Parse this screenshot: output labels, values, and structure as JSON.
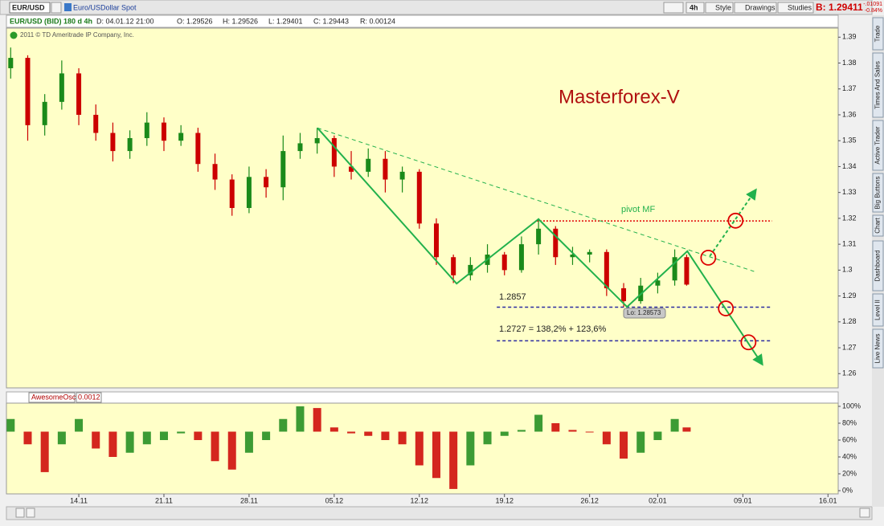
{
  "toolbar": {
    "symbol": "EUR/USD",
    "description": "Euro/USDollar Spot",
    "buttons": [
      "4h",
      "Style",
      "Drawings",
      "Studies"
    ],
    "bid": "B: 1.29411",
    "change": "-.01091",
    "change_pct": "-0.84%"
  },
  "info_bar": {
    "instrument": "EUR/USD (BID) 180 d 4h",
    "date": "D: 04.01.12 21:00",
    "open": "O: 1.29526",
    "high": "H: 1.29526",
    "low": "L: 1.29401",
    "close": "C: 1.29443",
    "range": "R: 0.00124"
  },
  "copyright": "2011 © TD Ameritrade IP Company, Inc.",
  "side_tabs": [
    "Trade",
    "Times And Sales",
    "Active Trader",
    "Big Buttons",
    "Chart",
    "Dashboard",
    "Level II",
    "Live News"
  ],
  "price_chart": {
    "type": "candlestick",
    "xlim": [
      0.75,
      49.6
    ],
    "xticks": [
      {
        "value": 5,
        "label": "14.11"
      },
      {
        "value": 10,
        "label": "21.11"
      },
      {
        "value": 15,
        "label": "28.11"
      },
      {
        "value": 20,
        "label": "05.12"
      },
      {
        "value": 25,
        "label": "12.12"
      },
      {
        "value": 30,
        "label": "19.12"
      },
      {
        "value": 35,
        "label": "26.12"
      },
      {
        "value": 39,
        "label": "02.01"
      },
      {
        "value": 44,
        "label": "09.01"
      },
      {
        "value": 49,
        "label": "16.01"
      }
    ],
    "ylim": [
      1.2545,
      1.3935
    ],
    "yticks": [
      1.39,
      1.38,
      1.37,
      1.36,
      1.35,
      1.34,
      1.33,
      1.32,
      1.31,
      1.3,
      1.29,
      1.28,
      1.27,
      1.26
    ],
    "up_color": "#1a8a1a",
    "down_color": "#cc0000",
    "candles": [
      [
        1,
        1.378,
        1.386,
        1.374,
        1.382
      ],
      [
        2,
        1.382,
        1.383,
        1.35,
        1.356
      ],
      [
        3,
        1.356,
        1.368,
        1.352,
        1.365
      ],
      [
        4,
        1.365,
        1.381,
        1.362,
        1.376
      ],
      [
        5,
        1.376,
        1.378,
        1.356,
        1.36
      ],
      [
        6,
        1.36,
        1.364,
        1.35,
        1.353
      ],
      [
        7,
        1.353,
        1.357,
        1.342,
        1.346
      ],
      [
        8,
        1.346,
        1.354,
        1.343,
        1.351
      ],
      [
        9,
        1.351,
        1.361,
        1.348,
        1.357
      ],
      [
        10,
        1.357,
        1.359,
        1.346,
        1.35
      ],
      [
        11,
        1.35,
        1.356,
        1.348,
        1.353
      ],
      [
        12,
        1.353,
        1.355,
        1.338,
        1.341
      ],
      [
        13,
        1.341,
        1.345,
        1.331,
        1.335
      ],
      [
        14,
        1.335,
        1.337,
        1.321,
        1.324
      ],
      [
        15,
        1.324,
        1.34,
        1.322,
        1.336
      ],
      [
        16,
        1.336,
        1.339,
        1.328,
        1.332
      ],
      [
        17,
        1.332,
        1.352,
        1.327,
        1.346
      ],
      [
        18,
        1.346,
        1.353,
        1.343,
        1.349
      ],
      [
        19,
        1.349,
        1.355,
        1.345,
        1.351
      ],
      [
        20,
        1.351,
        1.352,
        1.336,
        1.34
      ],
      [
        21,
        1.34,
        1.346,
        1.335,
        1.338
      ],
      [
        22,
        1.338,
        1.347,
        1.336,
        1.343
      ],
      [
        23,
        1.343,
        1.346,
        1.33,
        1.335
      ],
      [
        24,
        1.335,
        1.34,
        1.33,
        1.338
      ],
      [
        25,
        1.338,
        1.339,
        1.316,
        1.318
      ],
      [
        26,
        1.318,
        1.32,
        1.302,
        1.305
      ],
      [
        27,
        1.305,
        1.306,
        1.295,
        1.298
      ],
      [
        28,
        1.298,
        1.305,
        1.296,
        1.302
      ],
      [
        29,
        1.302,
        1.31,
        1.299,
        1.306
      ],
      [
        30,
        1.306,
        1.307,
        1.298,
        1.3
      ],
      [
        31,
        1.3,
        1.313,
        1.299,
        1.31
      ],
      [
        32,
        1.31,
        1.32,
        1.306,
        1.316
      ],
      [
        33,
        1.316,
        1.317,
        1.302,
        1.305
      ],
      [
        34,
        1.305,
        1.309,
        1.302,
        1.306
      ],
      [
        35,
        1.306,
        1.308,
        1.303,
        1.307
      ],
      [
        36,
        1.307,
        1.308,
        1.29,
        1.293
      ],
      [
        37,
        1.293,
        1.295,
        1.2857,
        1.288
      ],
      [
        38,
        1.288,
        1.297,
        1.287,
        1.294
      ],
      [
        39,
        1.294,
        1.299,
        1.291,
        1.296
      ],
      [
        40,
        1.296,
        1.308,
        1.294,
        1.305
      ],
      [
        40.7,
        1.305,
        1.306,
        1.294,
        1.2944
      ]
    ],
    "annotations": {
      "title": "Masterforex-V",
      "title_color": "#b01010",
      "pivot_label": "pivot MF",
      "level1_label": "1.2857",
      "level2_label": "1.2727 = 138,2% + 123,6%",
      "lo_label": "Lo: 1.28573",
      "levels": [
        {
          "price": 1.319,
          "from": 31.9,
          "to": 45.7,
          "color": "#e00000",
          "dash": "2,2"
        },
        {
          "price": 1.2857,
          "from": 29.55,
          "to": 45.7,
          "color": "#2a2aa0",
          "dash": "4,3"
        },
        {
          "price": 1.2727,
          "from": 29.55,
          "to": 45.7,
          "color": "#2a2aa0",
          "dash": "4,3"
        }
      ],
      "line_color": "#22b14c",
      "zigzag": [
        [
          19.02,
          1.3549
        ],
        [
          27.19,
          1.2948
        ],
        [
          32.0,
          1.3197
        ],
        [
          37.2,
          1.2858
        ],
        [
          40.74,
          1.3073
        ],
        [
          45.13,
          1.2637
        ]
      ],
      "trendline": [
        [
          19.02,
          1.3549
        ],
        [
          44.66,
          1.2995
        ]
      ],
      "arrow_up": [
        [
          42.06,
          1.3054
        ],
        [
          44.75,
          1.3309
        ]
      ],
      "circle_color": "#dd0000",
      "circles": [
        [
          41.97,
          1.3048
        ],
        [
          43.57,
          1.3191
        ],
        [
          43.0,
          1.2852
        ],
        [
          44.33,
          1.2721
        ]
      ]
    }
  },
  "oscillator": {
    "type": "histogram",
    "name": "AwesomeOscillator",
    "value": "0.0012",
    "ylim": [
      0,
      100
    ],
    "zero_level": 70,
    "yticks": [
      {
        "value": 100,
        "label": "100%"
      },
      {
        "value": 80,
        "label": "80%"
      },
      {
        "value": 60,
        "label": "60%"
      },
      {
        "value": 40,
        "label": "40%"
      },
      {
        "value": 20,
        "label": "20%"
      },
      {
        "value": 0,
        "label": "0%"
      }
    ],
    "up_color": "#1a8a1a",
    "down_color": "#cc0000",
    "values": [
      85,
      55,
      22,
      55,
      85,
      50,
      40,
      45,
      55,
      60,
      68,
      60,
      35,
      25,
      45,
      60,
      85,
      100,
      98,
      75,
      68,
      65,
      60,
      55,
      30,
      15,
      2,
      30,
      55,
      65,
      72,
      90,
      80,
      72,
      70,
      55,
      38,
      45,
      60,
      85,
      75
    ]
  }
}
